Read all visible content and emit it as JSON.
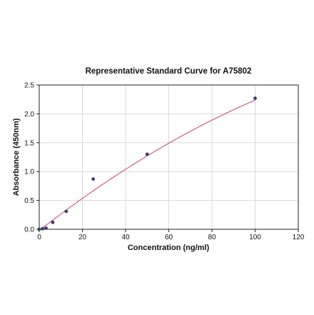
{
  "chart_data": {
    "type": "scatter",
    "title": "Representative Standard Curve for A75802",
    "xlabel": "Concentration (ng/ml)",
    "ylabel": "Absorbance (450nm)",
    "xlim": [
      0,
      120
    ],
    "ylim": [
      0,
      2.5
    ],
    "xticks": [
      0,
      20,
      40,
      60,
      80,
      100,
      120
    ],
    "xtick_labels": [
      "0",
      "20",
      "40",
      "60",
      "80",
      "100",
      "120"
    ],
    "yticks": [
      0,
      0.5,
      1.0,
      1.5,
      2.0,
      2.5
    ],
    "ytick_labels": [
      "0.0",
      "0.5",
      "1.0",
      "1.5",
      "2.0",
      "2.5"
    ],
    "grid": true,
    "series": [
      {
        "x": [
          0,
          1.56,
          3.13,
          6.25,
          12.5,
          25,
          50,
          100
        ],
        "y": [
          0.0,
          0.01,
          0.02,
          0.12,
          0.31,
          0.87,
          1.3,
          2.27
        ],
        "marker_color": "#3a3f6b"
      }
    ],
    "fit_curve": {
      "x_range": [
        0,
        100
      ],
      "model": "y = 0.0291x - 0.0000652x^2 - 0.02",
      "coefficients": {
        "a": 0.0291,
        "b": -6.52e-05,
        "c": -0.02
      },
      "color": "#c0587a"
    }
  }
}
